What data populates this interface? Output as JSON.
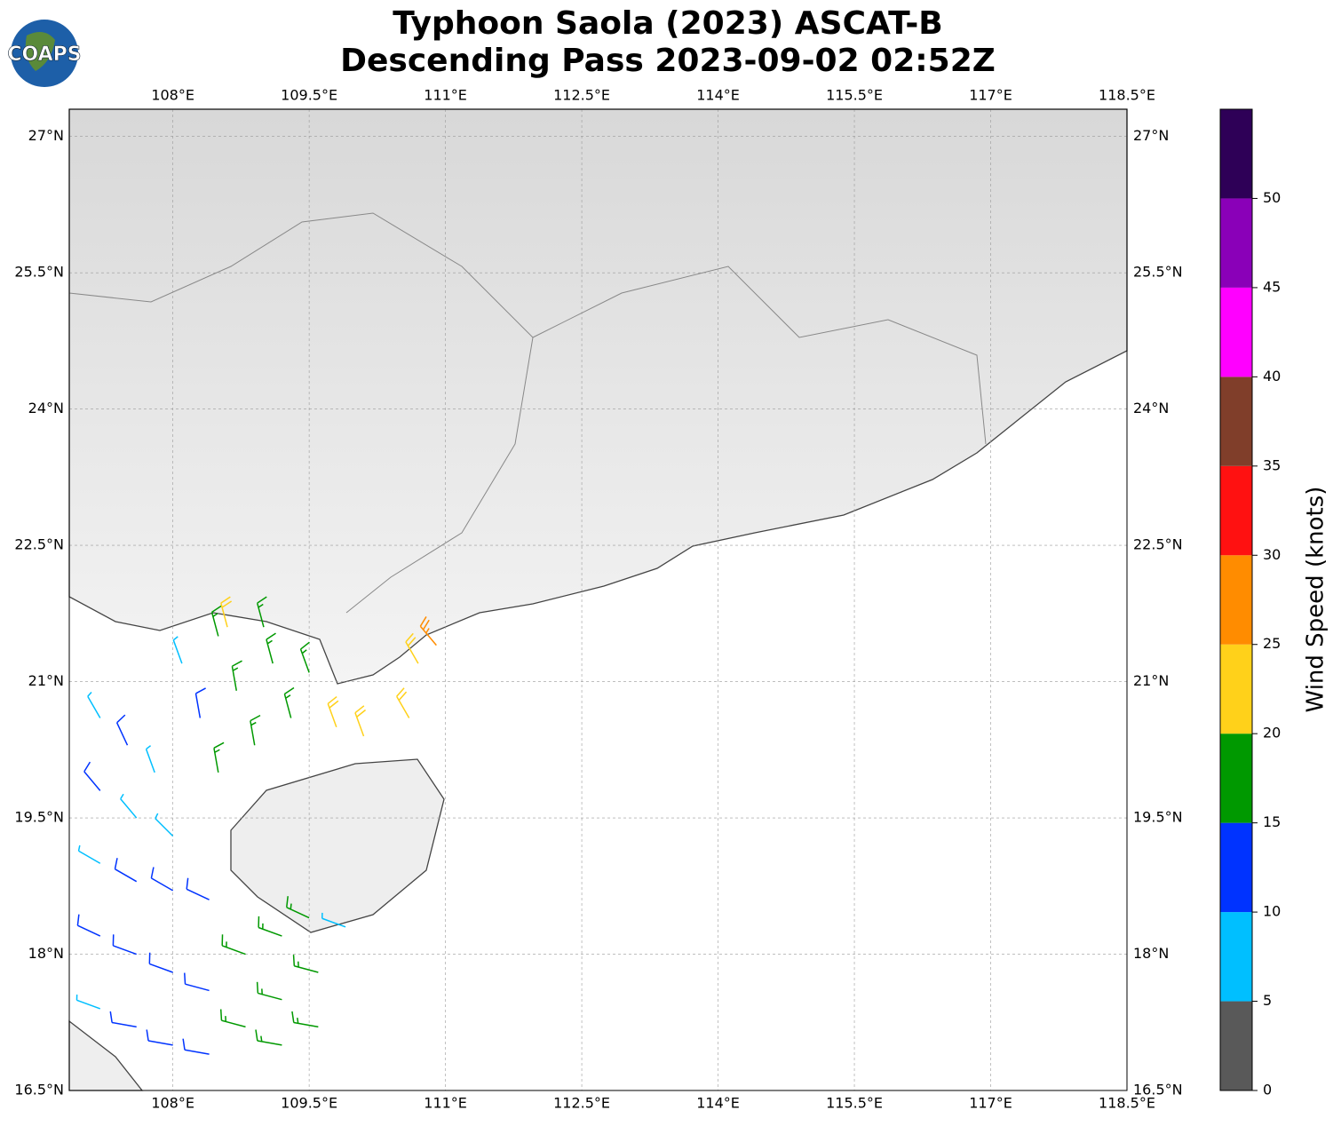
{
  "chart_data": {
    "type": "map",
    "logo": "COAPS",
    "title": [
      "Typhoon Saola (2023) ASCAT-B",
      "Descending Pass 2023-09-02 02:52Z"
    ],
    "xlim": [
      106.86,
      118.5
    ],
    "ylim": [
      16.5,
      27.3
    ],
    "xticks": [
      {
        "value": 108,
        "label": "108°E"
      },
      {
        "value": 109.5,
        "label": "109.5°E"
      },
      {
        "value": 111,
        "label": "111°E"
      },
      {
        "value": 112.5,
        "label": "112.5°E"
      },
      {
        "value": 114,
        "label": "114°E"
      },
      {
        "value": 115.5,
        "label": "115.5°E"
      },
      {
        "value": 117,
        "label": "117°E"
      },
      {
        "value": 118.5,
        "label": "118.5°E"
      }
    ],
    "yticks": [
      {
        "value": 16.5,
        "label": "16.5°N"
      },
      {
        "value": 18,
        "label": "18°N"
      },
      {
        "value": 19.5,
        "label": "19.5°N"
      },
      {
        "value": 21,
        "label": "21°N"
      },
      {
        "value": 22.5,
        "label": "22.5°N"
      },
      {
        "value": 24,
        "label": "24°N"
      },
      {
        "value": 25.5,
        "label": "25.5°N"
      },
      {
        "value": 27,
        "label": "27°N"
      }
    ],
    "grid": true,
    "barbs": [
      [
        107.2,
        20.6,
        8,
        330
      ],
      [
        107.5,
        20.3,
        12,
        335
      ],
      [
        107.8,
        20.0,
        7,
        340
      ],
      [
        107.2,
        19.8,
        11,
        320
      ],
      [
        107.6,
        19.5,
        8,
        320
      ],
      [
        108.0,
        19.3,
        9,
        315
      ],
      [
        107.2,
        19.0,
        8,
        300
      ],
      [
        107.6,
        18.8,
        11,
        300
      ],
      [
        108.0,
        18.7,
        12,
        300
      ],
      [
        108.4,
        18.6,
        11,
        295
      ],
      [
        107.2,
        18.2,
        12,
        295
      ],
      [
        107.6,
        18.0,
        13,
        290
      ],
      [
        108.0,
        17.8,
        14,
        290
      ],
      [
        108.4,
        17.6,
        12,
        285
      ],
      [
        107.2,
        17.4,
        9,
        290
      ],
      [
        107.6,
        17.2,
        12,
        280
      ],
      [
        108.0,
        17.0,
        11,
        280
      ],
      [
        108.4,
        16.9,
        13,
        280
      ],
      [
        108.8,
        17.2,
        16,
        285
      ],
      [
        109.2,
        17.5,
        17,
        285
      ],
      [
        109.6,
        17.8,
        18,
        285
      ],
      [
        109.2,
        17.0,
        16,
        280
      ],
      [
        109.6,
        17.2,
        17,
        280
      ],
      [
        108.8,
        18.0,
        17,
        290
      ],
      [
        109.2,
        18.2,
        18,
        290
      ],
      [
        109.5,
        18.4,
        16,
        295
      ],
      [
        109.9,
        18.3,
        8,
        290
      ],
      [
        108.5,
        20.0,
        17,
        350
      ],
      [
        108.9,
        20.3,
        18,
        350
      ],
      [
        109.3,
        20.6,
        18,
        345
      ],
      [
        108.7,
        20.9,
        17,
        350
      ],
      [
        109.1,
        21.2,
        18,
        345
      ],
      [
        109.5,
        21.1,
        17,
        340
      ],
      [
        108.3,
        20.6,
        14,
        350
      ],
      [
        108.1,
        21.2,
        9,
        340
      ],
      [
        108.5,
        21.5,
        18,
        345
      ],
      [
        109.0,
        21.6,
        17,
        345
      ],
      [
        109.8,
        20.5,
        22,
        340
      ],
      [
        110.1,
        20.4,
        21,
        340
      ],
      [
        110.6,
        20.6,
        23,
        330
      ],
      [
        110.7,
        21.2,
        22,
        330
      ],
      [
        110.9,
        21.4,
        26,
        320
      ],
      [
        108.6,
        21.6,
        22,
        345
      ]
    ],
    "colorbar": {
      "label": "Wind Speed (knots)",
      "bounds": [
        0,
        5,
        10,
        15,
        20,
        25,
        30,
        35,
        40,
        45,
        50,
        55
      ],
      "colors": [
        "#595959",
        "#00bfff",
        "#0033ff",
        "#009900",
        "#ffd11a",
        "#ff8c00",
        "#ff1111",
        "#803e2a",
        "#ff00ff",
        "#8a00b8",
        "#2e0057"
      ],
      "ticks": [
        0,
        5,
        10,
        15,
        20,
        25,
        30,
        35,
        40,
        45,
        50
      ]
    }
  }
}
